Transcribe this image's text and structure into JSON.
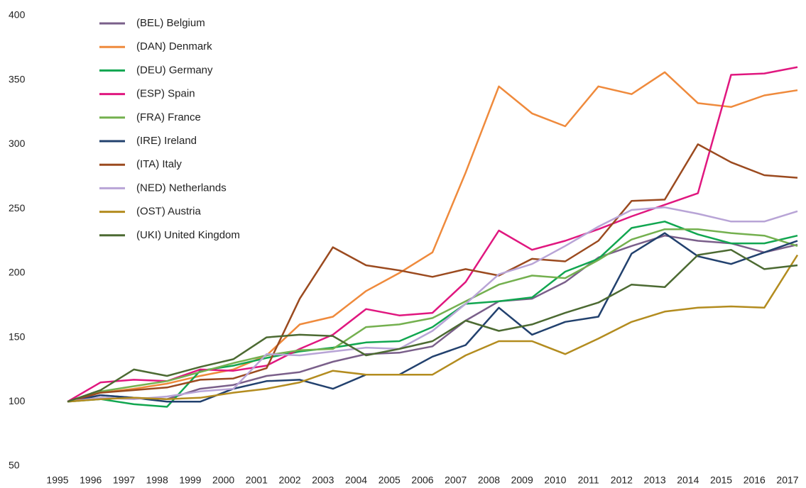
{
  "chart_data": {
    "type": "line",
    "x": [
      1995,
      1996,
      1997,
      1998,
      1999,
      2000,
      2001,
      2002,
      2003,
      2004,
      2005,
      2006,
      2007,
      2008,
      2009,
      2010,
      2011,
      2012,
      2013,
      2014,
      2015,
      2016,
      2017
    ],
    "xlim": [
      1995,
      2017
    ],
    "xticks": [
      1995,
      1996,
      1997,
      1998,
      1999,
      2000,
      2001,
      2002,
      2003,
      2004,
      2005,
      2006,
      2007,
      2008,
      2009,
      2010,
      2011,
      2012,
      2013,
      2014,
      2015,
      2016,
      2017
    ],
    "ylim": [
      50,
      400
    ],
    "yticks": [
      50,
      100,
      150,
      200,
      250,
      300,
      350,
      400
    ],
    "grid": false,
    "legend": "top-left",
    "series": [
      {
        "name": "(BEL) Belgium",
        "color": "#7a5f8a",
        "values": [
          100,
          105,
          103,
          102,
          110,
          113,
          120,
          123,
          131,
          137,
          138,
          143,
          163,
          178,
          180,
          193,
          212,
          221,
          229,
          225,
          223,
          216,
          222
        ]
      },
      {
        "name": "(DAN) Denmark",
        "color": "#ef8a3c",
        "values": [
          100,
          107,
          110,
          114,
          120,
          125,
          136,
          160,
          166,
          186,
          200,
          216,
          278,
          345,
          324,
          314,
          345,
          339,
          356,
          332,
          329,
          338,
          342
        ]
      },
      {
        "name": "(DEU) Germany",
        "color": "#11a650",
        "values": [
          100,
          102,
          98,
          96,
          124,
          128,
          134,
          139,
          142,
          146,
          147,
          158,
          176,
          178,
          181,
          201,
          211,
          235,
          240,
          230,
          223,
          223,
          229
        ]
      },
      {
        "name": "(ESP) Spain",
        "color": "#e0177f",
        "values": [
          100,
          115,
          117,
          116,
          125,
          124,
          128,
          141,
          152,
          172,
          167,
          169,
          193,
          233,
          218,
          225,
          234,
          244,
          253,
          262,
          354,
          355,
          360
        ]
      },
      {
        "name": "(FRA) France",
        "color": "#74b04f",
        "values": [
          100,
          108,
          112,
          116,
          123,
          130,
          136,
          140,
          141,
          158,
          160,
          165,
          178,
          191,
          198,
          196,
          210,
          226,
          234,
          234,
          231,
          229,
          221
        ]
      },
      {
        "name": "(IRE) Ireland",
        "color": "#22416e",
        "values": [
          100,
          105,
          103,
          100,
          100,
          110,
          116,
          117,
          110,
          121,
          121,
          135,
          144,
          173,
          152,
          162,
          166,
          215,
          231,
          213,
          207,
          216,
          225
        ]
      },
      {
        "name": "(ITA) Italy",
        "color": "#9b4a1f",
        "values": [
          100,
          107,
          109,
          111,
          117,
          118,
          126,
          180,
          220,
          206,
          202,
          197,
          203,
          198,
          211,
          209,
          225,
          256,
          257,
          300,
          286,
          276,
          274
        ]
      },
      {
        "name": "(NED) Netherlands",
        "color": "#b8a4d6",
        "values": [
          100,
          103,
          102,
          104,
          108,
          110,
          137,
          136,
          139,
          142,
          141,
          155,
          176,
          199,
          207,
          221,
          236,
          249,
          251,
          246,
          240,
          240,
          248
        ]
      },
      {
        "name": "(OST) Austria",
        "color": "#b38c1f",
        "values": [
          100,
          102,
          103,
          102,
          103,
          107,
          110,
          115,
          124,
          121,
          121,
          121,
          136,
          147,
          147,
          137,
          149,
          162,
          170,
          173,
          174,
          173,
          214
        ]
      },
      {
        "name": "(UKI) United Kingdom",
        "color": "#4c6a32",
        "values": [
          100,
          109,
          125,
          120,
          127,
          133,
          150,
          152,
          151,
          136,
          141,
          147,
          163,
          155,
          160,
          169,
          177,
          191,
          189,
          214,
          218,
          203,
          206
        ]
      }
    ]
  }
}
